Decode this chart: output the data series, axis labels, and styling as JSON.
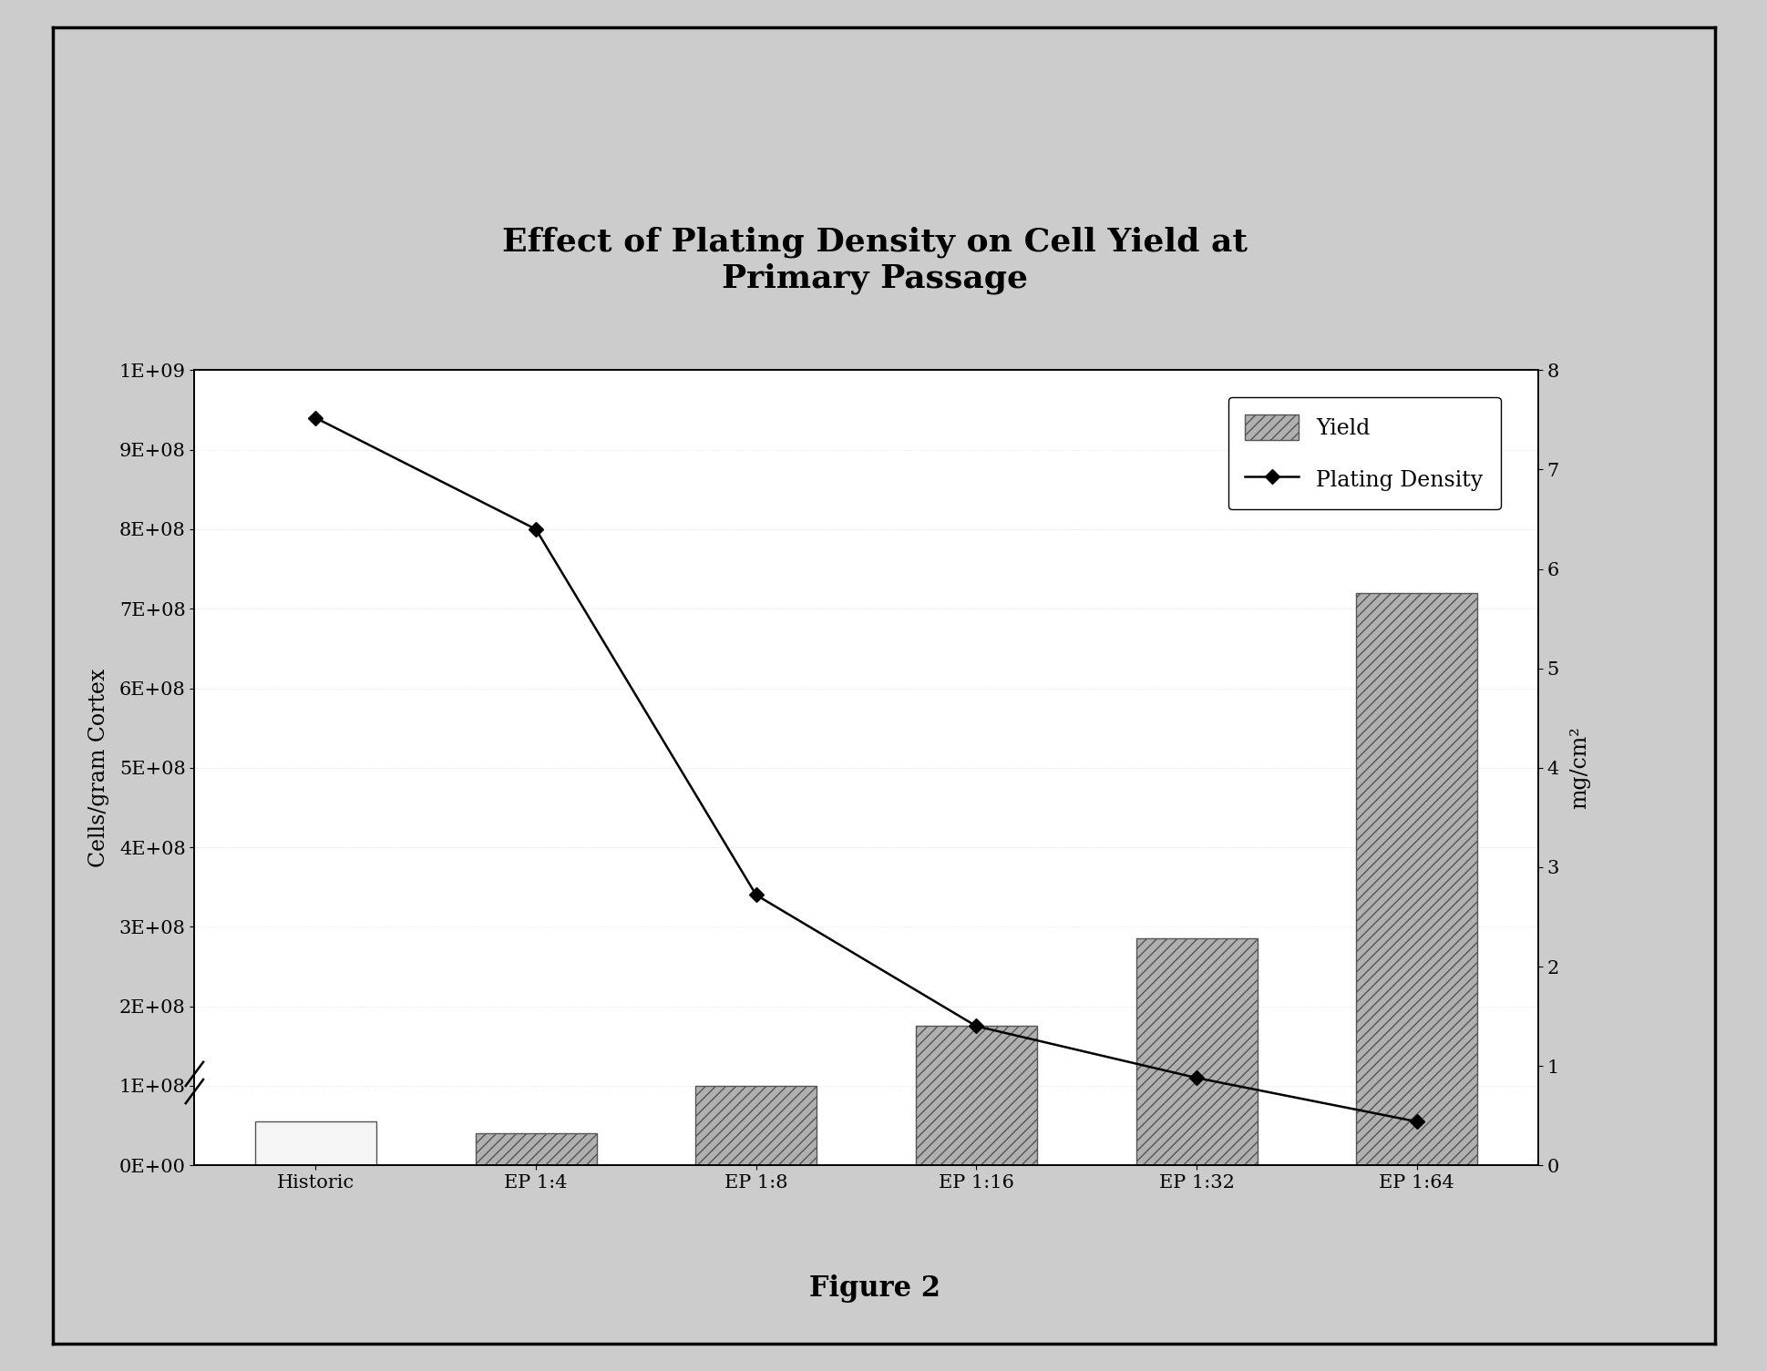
{
  "title": "Effect of Plating Density on Cell Yield at\nPrimary Passage",
  "ylabel_left": "Cells/gram Cortex",
  "ylabel_right": "mg/cm²",
  "categories": [
    "Historic",
    "EP 1:4",
    "EP 1:8",
    "EP 1:16",
    "EP 1:32",
    "EP 1:64"
  ],
  "bar_values": [
    55000000.0,
    40000000.0,
    100000000.0,
    175000000.0,
    285000000.0,
    720000000.0
  ],
  "bar_colors": [
    "#f5f5f5",
    "#b0b0b0",
    "#b0b0b0",
    "#b0b0b0",
    "#b0b0b0",
    "#b0b0b0"
  ],
  "bar_hatch": [
    "",
    "///",
    "///",
    "///",
    "///",
    "///"
  ],
  "bar_edgecolor": [
    "#555555",
    "#555555",
    "#555555",
    "#555555",
    "#555555",
    "#555555"
  ],
  "line_values_right": [
    7.52,
    6.4,
    2.72,
    1.4,
    0.88,
    0.44
  ],
  "ylim_left": [
    0,
    1000000000.0
  ],
  "ylim_right": [
    0,
    8
  ],
  "yticks_left": [
    0,
    100000000.0,
    200000000.0,
    300000000.0,
    400000000.0,
    500000000.0,
    600000000.0,
    700000000.0,
    800000000.0,
    900000000.0,
    1000000000.0
  ],
  "ytick_labels_left": [
    "0E+00",
    "1E+08",
    "2E+08",
    "3E+08",
    "4E+08",
    "5E+08",
    "6E+08",
    "7E+08",
    "8E+08",
    "9E+08",
    "1E+09"
  ],
  "yticks_right": [
    0,
    1,
    2,
    3,
    4,
    5,
    6,
    7,
    8
  ],
  "figure_caption": "Figure 2",
  "legend_yield_label": "Yield",
  "legend_line_label": "Plating Density",
  "plot_bg": "#ffffff",
  "outer_bg": "#cccccc",
  "title_fontsize": 26,
  "label_fontsize": 17,
  "tick_fontsize": 15,
  "legend_fontsize": 17,
  "caption_fontsize": 22
}
